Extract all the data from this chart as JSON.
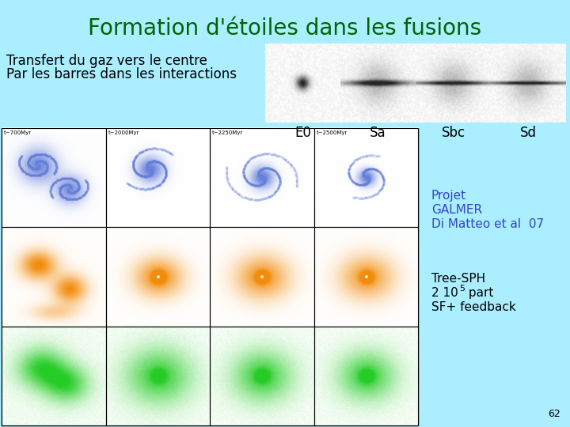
{
  "title": "Formation d'étoiles dans les fusions",
  "title_color": "#006400",
  "title_fontsize": 20,
  "background_color": "#aaeeff",
  "text_left_line1": "Transfert du gaz vers le centre",
  "text_left_line2": "Par les barres dans les interactions",
  "text_fontsize": 12,
  "galaxy_labels": [
    "E0",
    "Sa",
    "Sbc",
    "Sd"
  ],
  "galaxy_label_fontsize": 12,
  "projet_text_lines": [
    "Projet",
    "GALMER",
    "Di Matteo et al  07"
  ],
  "projet_color": "#3344cc",
  "projet_fontsize": 11,
  "tree_line1": "Tree-SPH",
  "tree_line2": "2 10",
  "tree_sup": "5",
  "tree_line2b": " part",
  "tree_line3": "SF+ feedback",
  "tree_fontsize": 11,
  "page_number": "62",
  "page_fontsize": 9,
  "time_labels": [
    "t~700Myr",
    "t~2000Myr",
    "t~2250Myr",
    "t~2500Myr"
  ],
  "time_fontsize": 5,
  "row_colors_blue": [
    0.4,
    0.5,
    0.85
  ],
  "row_colors_orange": [
    0.95,
    0.55,
    0.05
  ],
  "row_colors_green": [
    0.15,
    0.8,
    0.15
  ]
}
